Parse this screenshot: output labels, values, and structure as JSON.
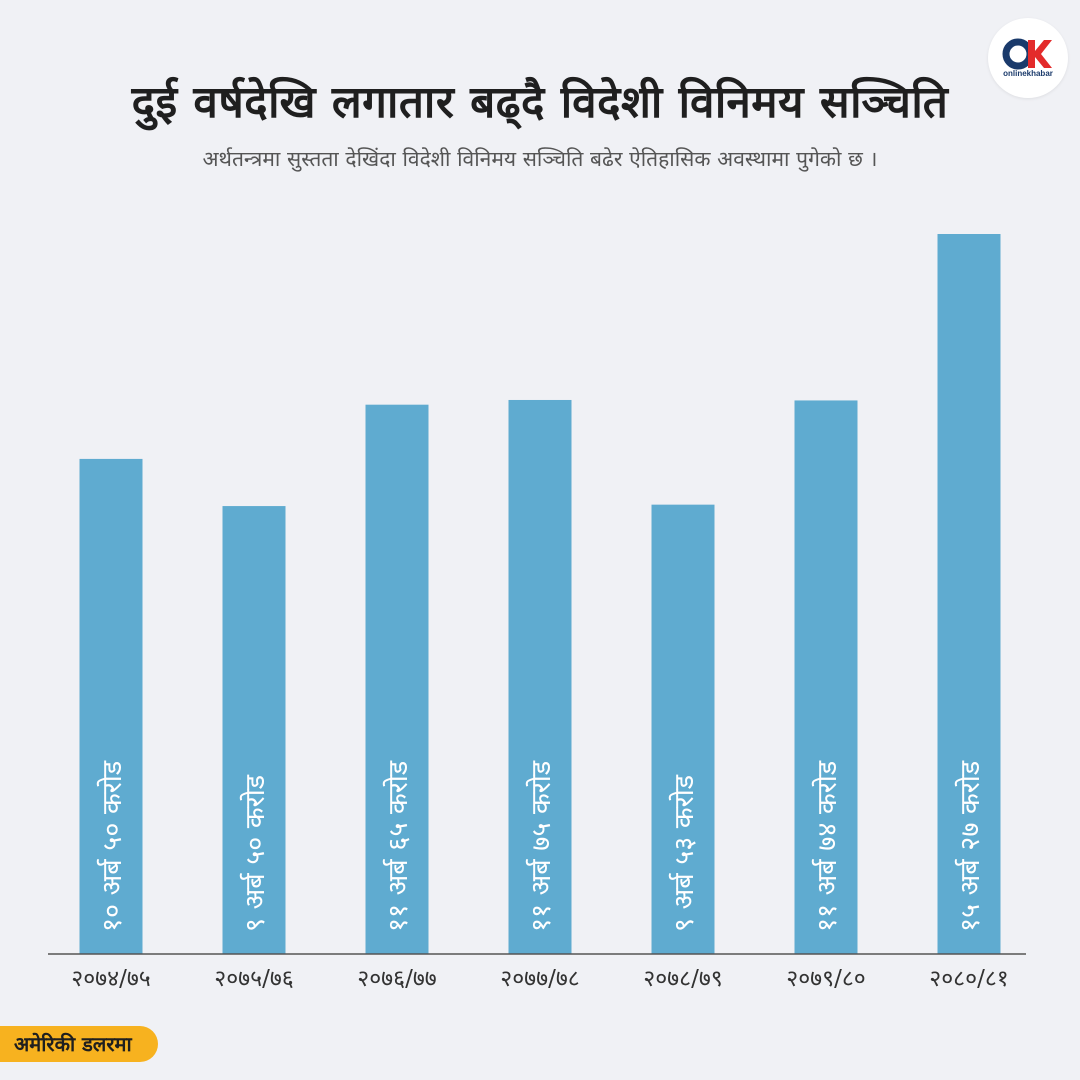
{
  "title": "दुई वर्षदेखि लगातार बढ्दै विदेशी विनिमय सञ्चिति",
  "subtitle": "अर्थतन्त्रमा सुस्तता देखिंदा विदेशी विनिमय सञ्चिति बढेर ऐतिहासिक अवस्थामा पुगेको छ ।",
  "unit_label": "अमेरिकी डलरमा",
  "logo_text": "onlinekhabar",
  "colors": {
    "bar": "#5fabd0",
    "axis": "#555555",
    "background": "#f0f1f5",
    "badge": "#f7b21f",
    "logo_red": "#e32b2b",
    "logo_blue": "#1a3a6b"
  },
  "chart_data": {
    "type": "bar",
    "categories": [
      "२०७४/७५",
      "२०७५/७६",
      "२०७६/७७",
      "२०७७/७८",
      "२०७८/७९",
      "२०७९/८०",
      "२०८०/८१"
    ],
    "values": [
      10.5,
      9.5,
      11.65,
      11.75,
      9.53,
      11.74,
      15.27
    ],
    "labels": [
      "१० अर्ब ५० करोड",
      "९ अर्ब ५० करोड",
      "११ अर्ब ६५ करोड",
      "११ अर्ब ७५ करोड",
      "९ अर्ब ५३ करोड",
      "११ अर्ब ७४ करोड",
      "१५ अर्ब २७ करोड"
    ],
    "title": "दुई वर्षदेखि लगातार बढ्दै विदेशी विनिमय सञ्चिति",
    "xlabel": "",
    "ylabel": "",
    "unit": "अमेरिकी डलरमा",
    "ylim": [
      0,
      15.27
    ],
    "grid": false,
    "legend": "none"
  }
}
